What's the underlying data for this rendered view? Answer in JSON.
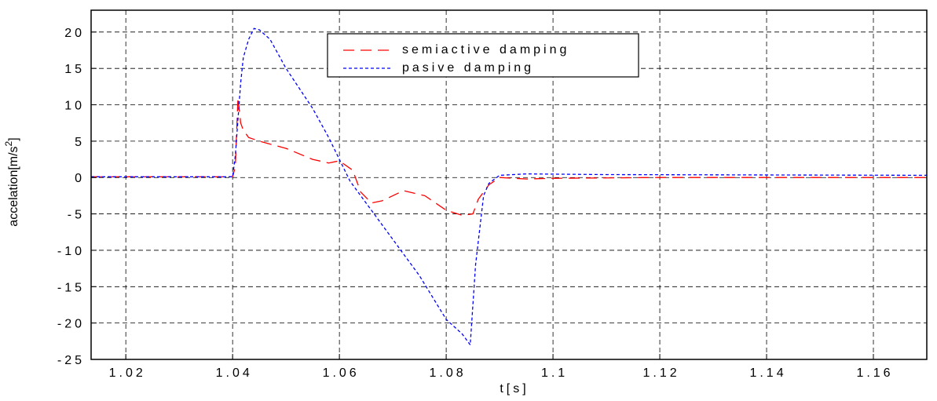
{
  "chart_data": {
    "type": "line",
    "xlabel": "t[s]",
    "ylabel_parts": [
      "accelation[m/s",
      "2",
      "]"
    ],
    "xlim": [
      1.0135,
      1.17
    ],
    "ylim": [
      -25,
      23
    ],
    "grid": true,
    "legend_position": "top-center",
    "x_ticks": [
      1.02,
      1.04,
      1.06,
      1.08,
      1.1,
      1.12,
      1.14,
      1.16
    ],
    "x_tick_labels": [
      "1.02",
      "1.04",
      "1.06",
      "1.08",
      "1.1",
      "1.12",
      "1.14",
      "1.16"
    ],
    "y_ticks": [
      20,
      15,
      10,
      5,
      0,
      -5,
      -10,
      -15,
      -20,
      -25
    ],
    "y_tick_labels": [
      "20",
      "15",
      "10",
      "5",
      "0",
      "-5",
      "-10",
      "-15",
      "-20",
      "-25"
    ],
    "series": [
      {
        "name": "semiactive damping",
        "color": "#ff0000",
        "dash": "14 8",
        "points": [
          [
            1.0135,
            0.1
          ],
          [
            1.04,
            0.1
          ],
          [
            1.0405,
            1.5
          ],
          [
            1.041,
            11
          ],
          [
            1.0415,
            7.5
          ],
          [
            1.042,
            6.5
          ],
          [
            1.043,
            5.5
          ],
          [
            1.045,
            5
          ],
          [
            1.05,
            4
          ],
          [
            1.055,
            2.5
          ],
          [
            1.058,
            2
          ],
          [
            1.06,
            2.3
          ],
          [
            1.0625,
            1
          ],
          [
            1.064,
            -2
          ],
          [
            1.066,
            -3.5
          ],
          [
            1.068,
            -3.2
          ],
          [
            1.072,
            -1.8
          ],
          [
            1.076,
            -2.5
          ],
          [
            1.08,
            -4.5
          ],
          [
            1.083,
            -5.2
          ],
          [
            1.085,
            -5
          ],
          [
            1.086,
            -3
          ],
          [
            1.088,
            -1
          ],
          [
            1.09,
            0
          ],
          [
            1.095,
            -0.2
          ],
          [
            1.1,
            -0.1
          ],
          [
            1.12,
            0
          ],
          [
            1.17,
            0
          ]
        ]
      },
      {
        "name": "pasive damping",
        "color": "#0000ff",
        "dash": "4 3",
        "points": [
          [
            1.0135,
            0.1
          ],
          [
            1.04,
            0.1
          ],
          [
            1.0405,
            3
          ],
          [
            1.0415,
            13
          ],
          [
            1.042,
            16.5
          ],
          [
            1.043,
            19
          ],
          [
            1.044,
            20.5
          ],
          [
            1.045,
            20.3
          ],
          [
            1.047,
            19
          ],
          [
            1.05,
            15
          ],
          [
            1.055,
            9.5
          ],
          [
            1.058,
            5.5
          ],
          [
            1.06,
            2.5
          ],
          [
            1.062,
            -0.5
          ],
          [
            1.065,
            -3.5
          ],
          [
            1.07,
            -8.5
          ],
          [
            1.075,
            -13.5
          ],
          [
            1.08,
            -19.5
          ],
          [
            1.083,
            -21.5
          ],
          [
            1.0845,
            -23
          ],
          [
            1.0855,
            -12
          ],
          [
            1.087,
            -2.5
          ],
          [
            1.088,
            -0.8
          ],
          [
            1.09,
            0.3
          ],
          [
            1.095,
            0.5
          ],
          [
            1.11,
            0.4
          ],
          [
            1.17,
            0.3
          ]
        ]
      }
    ]
  }
}
